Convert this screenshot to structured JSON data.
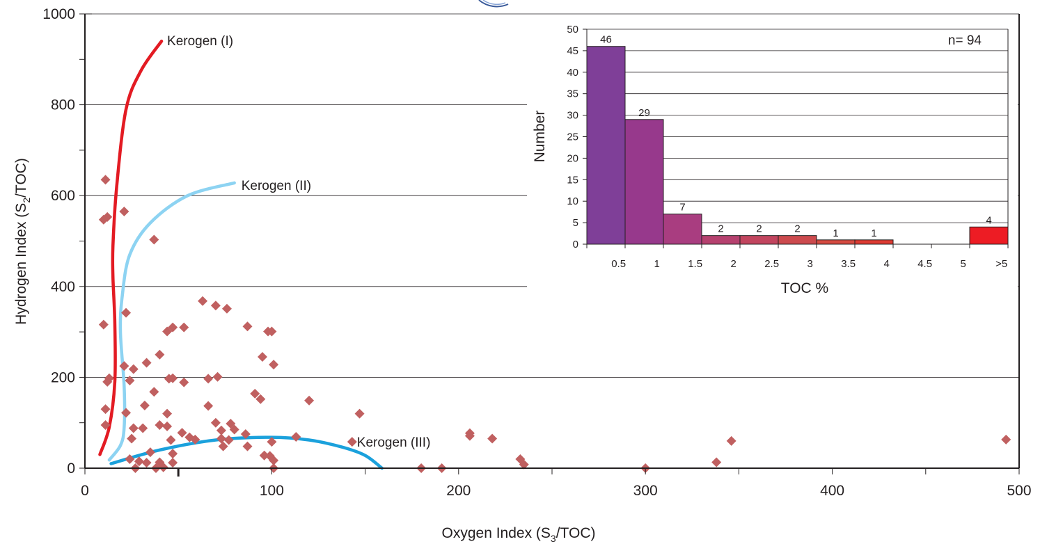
{
  "chart_data": [
    {
      "type": "scatter",
      "title": "",
      "xlabel": {
        "base": "Oxygen Index (S",
        "sub": "3",
        "tail": "/TOC)"
      },
      "ylabel": {
        "base": "Hydrogen Index (S",
        "sub": "2",
        "tail": "/TOC)"
      },
      "xlim": [
        0,
        500
      ],
      "ylim": [
        0,
        1000
      ],
      "x_ticks": [
        0,
        100,
        200,
        300,
        400,
        500
      ],
      "y_ticks": [
        0,
        200,
        400,
        600,
        800,
        1000
      ],
      "grid": "horizontal",
      "marker_color": "#c06060",
      "series": [
        {
          "points": [
            [
              11,
              635
            ],
            [
              10,
              547
            ],
            [
              12,
              553
            ],
            [
              21,
              565
            ],
            [
              37,
              503
            ],
            [
              10,
              316
            ],
            [
              22,
              342
            ],
            [
              12,
              190
            ],
            [
              13,
              198
            ],
            [
              21,
              225
            ],
            [
              24,
              193
            ],
            [
              26,
              218
            ],
            [
              33,
              232
            ],
            [
              37,
              168
            ],
            [
              40,
              250
            ],
            [
              44,
              301
            ],
            [
              47,
              310
            ],
            [
              53,
              310
            ],
            [
              45,
              197
            ],
            [
              47,
              198
            ],
            [
              53,
              189
            ],
            [
              63,
              368
            ],
            [
              70,
              358
            ],
            [
              76,
              351
            ],
            [
              71,
              201
            ],
            [
              66,
              197
            ],
            [
              87,
              312
            ],
            [
              98,
              301
            ],
            [
              100,
              301
            ],
            [
              95,
              245
            ],
            [
              101,
              228
            ],
            [
              91,
              164
            ],
            [
              94,
              152
            ],
            [
              120,
              149
            ],
            [
              147,
              120
            ],
            [
              11,
              130
            ],
            [
              11,
              95
            ],
            [
              22,
              122
            ],
            [
              32,
              138
            ],
            [
              26,
              88
            ],
            [
              31,
              88
            ],
            [
              40,
              95
            ],
            [
              44,
              92
            ],
            [
              44,
              120
            ],
            [
              46,
              62
            ],
            [
              25,
              65
            ],
            [
              24,
              20
            ],
            [
              29,
              15
            ],
            [
              27,
              0
            ],
            [
              33,
              12
            ],
            [
              35,
              35
            ],
            [
              38,
              0
            ],
            [
              40,
              13
            ],
            [
              42,
              2
            ],
            [
              47,
              12
            ],
            [
              47,
              32
            ],
            [
              52,
              78
            ],
            [
              56,
              68
            ],
            [
              59,
              63
            ],
            [
              66,
              137
            ],
            [
              70,
              100
            ],
            [
              73,
              83
            ],
            [
              73,
              65
            ],
            [
              74,
              48
            ],
            [
              78,
              98
            ],
            [
              77,
              62
            ],
            [
              80,
              85
            ],
            [
              86,
              75
            ],
            [
              87,
              48
            ],
            [
              96,
              28
            ],
            [
              99,
              27
            ],
            [
              100,
              58
            ],
            [
              101,
              17
            ],
            [
              101,
              0
            ],
            [
              113,
              69
            ],
            [
              143,
              58
            ],
            [
              180,
              0
            ],
            [
              191,
              0
            ],
            [
              206,
              77
            ],
            [
              206,
              71
            ],
            [
              218,
              65
            ],
            [
              233,
              20
            ],
            [
              235,
              8
            ],
            [
              300,
              0
            ],
            [
              338,
              13
            ],
            [
              346,
              60
            ],
            [
              493,
              63
            ]
          ]
        }
      ],
      "curves": [
        {
          "name": "Kerogen (I)",
          "color": "#e31b23",
          "points": [
            [
              8,
              30
            ],
            [
              13,
              90
            ],
            [
              16,
              190
            ],
            [
              16,
              320
            ],
            [
              15,
              420
            ],
            [
              15,
              490
            ],
            [
              17,
              620
            ],
            [
              22,
              790
            ],
            [
              30,
              875
            ],
            [
              41,
              940
            ]
          ]
        },
        {
          "name": "Kerogen (II)",
          "color": "#8dd3f2",
          "points": [
            [
              13,
              18
            ],
            [
              19,
              50
            ],
            [
              21,
              90
            ],
            [
              21,
              180
            ],
            [
              19,
              300
            ],
            [
              20,
              380
            ],
            [
              24,
              470
            ],
            [
              35,
              540
            ],
            [
              55,
              600
            ],
            [
              80,
              628
            ]
          ]
        },
        {
          "name": "Kerogen (III)",
          "color": "#1ba1dc",
          "points": [
            [
              14,
              10
            ],
            [
              40,
              40
            ],
            [
              70,
              62
            ],
            [
              100,
              68
            ],
            [
              120,
              62
            ],
            [
              138,
              46
            ],
            [
              150,
              28
            ],
            [
              159,
              0
            ]
          ]
        }
      ]
    },
    {
      "type": "bar",
      "title": "",
      "xlabel": "TOC %",
      "ylabel": "Number",
      "annotation": "n= 94",
      "ylim": [
        0,
        50
      ],
      "y_ticks": [
        0,
        5,
        10,
        15,
        20,
        25,
        30,
        35,
        40,
        45,
        50
      ],
      "x_tick_labels": [
        "0.5",
        "1",
        "1.5",
        "2",
        "2.5",
        "3",
        "3.5",
        "4",
        "4.5",
        "5",
        ">5"
      ],
      "categories": [
        "0-0.5",
        "0.5-1",
        "1-1.5",
        "1.5-2",
        "2-2.5",
        "2.5-3",
        "3-3.5",
        "3.5-4",
        "4-4.5",
        "4.5-5",
        ">5"
      ],
      "values": [
        46,
        29,
        7,
        2,
        2,
        2,
        1,
        1,
        0,
        0,
        4
      ],
      "data_labels": [
        "46",
        "29",
        "7",
        "2",
        "2",
        "2",
        "1",
        "1",
        "",
        "",
        "4"
      ],
      "colors": [
        "#7f3f98",
        "#97398c",
        "#a93d80",
        "#b6416f",
        "#c2455f",
        "#cc4a4e",
        "#d54a41",
        "#dd3b33",
        "#e33530",
        "#e6302c",
        "#ed1c24"
      ]
    }
  ]
}
